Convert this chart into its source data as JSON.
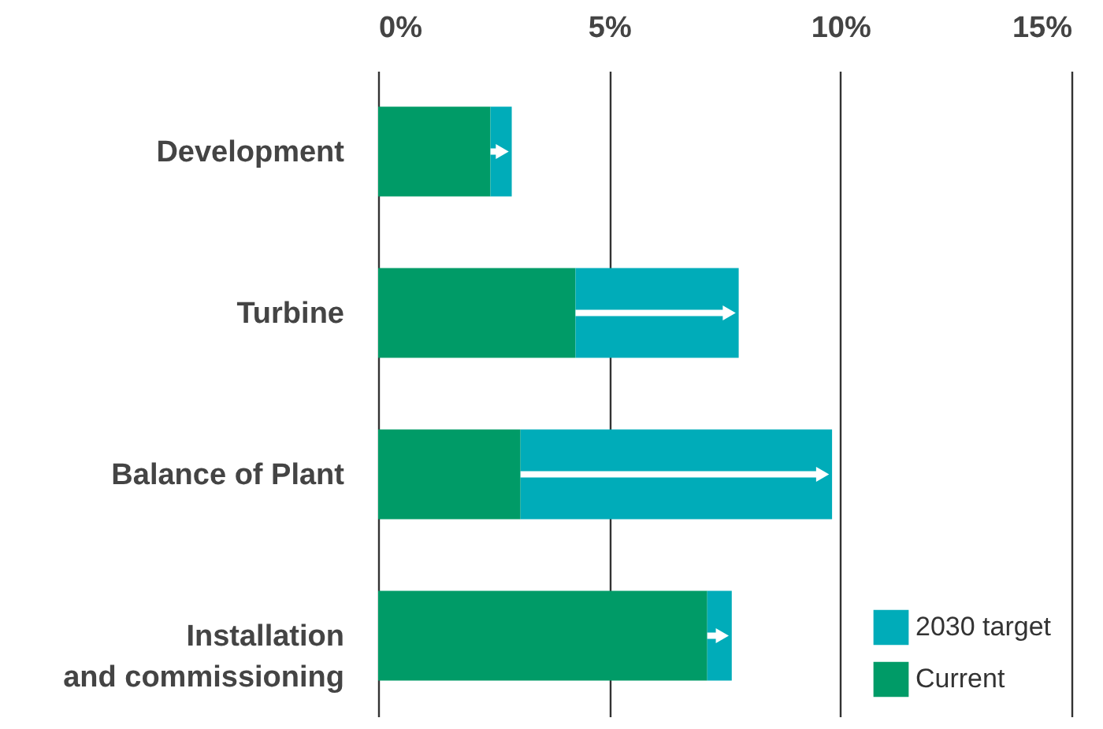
{
  "chart_data": {
    "type": "bar",
    "orientation": "horizontal",
    "stacked": true,
    "categories": [
      "Development",
      "Turbine",
      "Balance of Plant",
      "Installation\nand commissioning"
    ],
    "series": [
      {
        "name": "Current",
        "color": "#009b67",
        "values": [
          2.43,
          4.27,
          3.08,
          7.12
        ]
      },
      {
        "name": "2030 target",
        "color": "#00acb9",
        "values": [
          0.46,
          3.53,
          6.74,
          0.53
        ]
      }
    ],
    "xlim": [
      0,
      15
    ],
    "xticks": [
      {
        "value": 0,
        "label": "0%"
      },
      {
        "value": 5,
        "label": "5%"
      },
      {
        "value": 10,
        "label": "10%"
      },
      {
        "value": 15,
        "label": "15%"
      }
    ],
    "grid": "x",
    "legend": "bottom right"
  }
}
